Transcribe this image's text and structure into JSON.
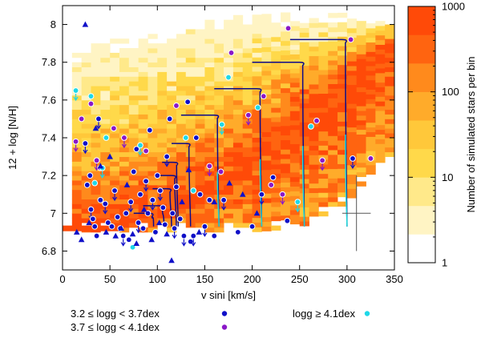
{
  "chart_data": {
    "type": "scatter",
    "xlabel": "v sini [km/s]",
    "ylabel": "12 + log [N/H]",
    "xlim": [
      0,
      350
    ],
    "ylim": [
      6.7,
      8.1
    ],
    "x_ticks": [
      "0",
      "50",
      "100",
      "150",
      "200",
      "250",
      "300",
      "350"
    ],
    "y_ticks": [
      "6.8",
      "7",
      "7.2",
      "7.4",
      "7.6",
      "7.8",
      "8"
    ],
    "colorbar": {
      "label": "Number of simulated stars per bin",
      "scale": "log",
      "range": [
        1,
        1000
      ],
      "ticks": [
        "1",
        "10",
        "100",
        "1000"
      ]
    },
    "heatmap": {
      "x_bin_width": 10,
      "bands": [
        {
          "x": 10,
          "lo": 6.9,
          "hi": 7.85,
          "peak": 6.92
        },
        {
          "x": 50,
          "lo": 6.9,
          "hi": 7.9,
          "peak": 6.93
        },
        {
          "x": 100,
          "lo": 6.9,
          "hi": 7.95,
          "peak": 6.97
        },
        {
          "x": 150,
          "lo": 6.9,
          "hi": 8.0,
          "peak": 7.1
        },
        {
          "x": 200,
          "lo": 6.9,
          "hi": 8.05,
          "peak": 7.3
        },
        {
          "x": 250,
          "lo": 6.92,
          "hi": 8.05,
          "peak": 7.52
        },
        {
          "x": 300,
          "lo": 7.05,
          "hi": 8.05,
          "peak": 7.72
        },
        {
          "x": 340,
          "lo": 7.3,
          "hi": 8.05,
          "peak": 7.88
        }
      ]
    },
    "tracks": [
      {
        "v0": 75,
        "y0": 7.0,
        "v_end": 96,
        "y_end": 6.93,
        "color": "#0b0b8a"
      },
      {
        "v0": 85,
        "y0": 7.04,
        "v_end": 107,
        "y_end": 6.93,
        "color": "#0b0b8a"
      },
      {
        "v0": 95,
        "y0": 7.13,
        "v_end": 115,
        "y_end": 6.93,
        "color": "#0b0b8a"
      },
      {
        "v0": 100,
        "y0": 7.2,
        "v_end": 120,
        "y_end": 6.93,
        "color": "#0b0b8a"
      },
      {
        "v0": 105,
        "y0": 7.27,
        "v_end": 122,
        "y_end": 6.93,
        "color": "#0b0b8a"
      },
      {
        "v0": 115,
        "y0": 7.37,
        "v_end": 135,
        "y_end": 6.93,
        "color": "#0b0b8a"
      },
      {
        "v0": 125,
        "y0": 7.52,
        "v_end": 165,
        "y_end": 6.93,
        "color": "#1ed8d8"
      },
      {
        "v0": 160,
        "y0": 7.66,
        "v_end": 210,
        "y_end": 6.93,
        "color": "#1ed8d8"
      },
      {
        "v0": 200,
        "y0": 7.8,
        "v_end": 255,
        "y_end": 6.93,
        "color": "#1ed8d8"
      },
      {
        "v0": 240,
        "y0": 7.92,
        "v_end": 300,
        "y_end": 6.93,
        "color": "#1ed8d8"
      }
    ],
    "error_bar": {
      "x": 310,
      "y": 7.0,
      "dx": 15,
      "dy_up": 0.2,
      "dy_down": 0.2
    },
    "series": [
      {
        "name": "3.2 ≤ logg < 3.7dex",
        "color": "#1010c8",
        "marker": "circle",
        "points": [
          [
            24,
            7.37
          ],
          [
            26,
            7.15
          ],
          [
            29,
            7.2
          ],
          [
            30,
            7.02
          ],
          [
            32,
            6.97
          ],
          [
            34,
            6.93
          ],
          [
            38,
            7.5
          ],
          [
            36,
            6.88
          ],
          [
            40,
            7.07
          ],
          [
            45,
            7.05
          ],
          [
            48,
            6.95
          ],
          [
            52,
            6.93
          ],
          [
            55,
            7.12
          ],
          [
            58,
            6.98
          ],
          [
            61,
            6.92
          ],
          [
            64,
            6.88
          ],
          [
            67,
            7.0
          ],
          [
            70,
            6.86
          ],
          [
            72,
            7.06
          ],
          [
            75,
            7.22
          ],
          [
            78,
            7.34
          ],
          [
            80,
            6.95
          ],
          [
            82,
            7.1
          ],
          [
            85,
            6.92
          ],
          [
            88,
            7.17
          ],
          [
            90,
            7.0
          ],
          [
            92,
            7.44
          ],
          [
            95,
            7.07
          ],
          [
            98,
            6.9
          ],
          [
            100,
            7.2
          ],
          [
            103,
            7.12
          ],
          [
            106,
            7.03
          ],
          [
            108,
            6.94
          ],
          [
            110,
            7.3
          ],
          [
            113,
            7.5
          ],
          [
            116,
            7.0
          ],
          [
            118,
            6.92
          ],
          [
            120,
            7.14
          ],
          [
            124,
            6.97
          ],
          [
            128,
            6.88
          ],
          [
            132,
            7.59
          ],
          [
            135,
            6.85
          ],
          [
            138,
            6.88
          ],
          [
            141,
            7.4
          ],
          [
            145,
            7.1
          ],
          [
            150,
            6.93
          ],
          [
            155,
            7.07
          ],
          [
            160,
            6.88
          ],
          [
            170,
            7.07
          ],
          [
            185,
            6.9
          ],
          [
            200,
            6.93
          ],
          [
            210,
            7.1
          ],
          [
            222,
            7.19
          ],
          [
            237,
            6.96
          ],
          [
            306,
            7.29
          ]
        ]
      },
      {
        "name": "3.7 ≤ logg < 4.1dex",
        "color": "#8a18c8",
        "marker": "circle",
        "points": [
          [
            14,
            7.38
          ],
          [
            20,
            7.5
          ],
          [
            30,
            7.58
          ],
          [
            36,
            7.28
          ],
          [
            40,
            7.24
          ],
          [
            54,
            7.45
          ],
          [
            65,
            7.4
          ],
          [
            88,
            7.33
          ],
          [
            120,
            7.57
          ],
          [
            155,
            7.25
          ],
          [
            167,
            7.22
          ],
          [
            178,
            7.85
          ],
          [
            196,
            7.52
          ],
          [
            212,
            7.62
          ],
          [
            220,
            7.15
          ],
          [
            232,
            7.1
          ],
          [
            238,
            7.98
          ],
          [
            268,
            7.49
          ],
          [
            274,
            7.28
          ],
          [
            304,
            7.92
          ],
          [
            325,
            7.29
          ]
        ]
      },
      {
        "name": "logg ≥ 4.1dex",
        "color": "#1ed8e8",
        "marker": "circle",
        "points": [
          [
            14,
            7.65
          ],
          [
            30,
            7.62
          ],
          [
            34,
            7.16
          ],
          [
            42,
            7.24
          ],
          [
            46,
            7.4
          ],
          [
            74,
            6.82
          ],
          [
            82,
            7.36
          ],
          [
            130,
            7.4
          ],
          [
            138,
            7.12
          ],
          [
            168,
            7.47
          ],
          [
            175,
            7.72
          ],
          [
            206,
            7.56
          ],
          [
            248,
            7.06
          ],
          [
            262,
            7.46
          ]
        ]
      },
      {
        "name": "",
        "color": "#1010c8",
        "marker": "triangle",
        "points": [
          [
            15,
            6.9
          ],
          [
            20,
            6.86
          ],
          [
            24,
            8.0
          ],
          [
            28,
            6.95
          ],
          [
            35,
            7.45
          ],
          [
            40,
            7.25
          ],
          [
            46,
            6.9
          ],
          [
            50,
            7.3
          ],
          [
            56,
            6.88
          ],
          [
            62,
            6.92
          ],
          [
            68,
            7.15
          ],
          [
            74,
            6.89
          ],
          [
            78,
            6.84
          ],
          [
            86,
            7.02
          ],
          [
            94,
            6.86
          ],
          [
            102,
            6.95
          ],
          [
            110,
            6.89
          ],
          [
            115,
            6.75
          ],
          [
            126,
            7.06
          ],
          [
            133,
            7.23
          ],
          [
            144,
            6.9
          ],
          [
            160,
            7.06
          ],
          [
            176,
            7.16
          ],
          [
            190,
            7.1
          ],
          [
            205,
            7.0
          ]
        ]
      }
    ],
    "legend": {
      "placement": "bottom",
      "entries": [
        "3.2 ≤ logg < 3.7dex",
        "3.7 ≤ logg < 4.1dex",
        "logg ≥ 4.1dex"
      ],
      "colors": [
        "#1010c8",
        "#8a18c8",
        "#1ed8e8"
      ]
    },
    "colors": {
      "cmap": [
        "#ffffff",
        "#fff4c4",
        "#ffe98a",
        "#ffd94a",
        "#ffc83a",
        "#ffab2a",
        "#ff8a1c",
        "#ff6410",
        "#ff4a08"
      ]
    }
  }
}
